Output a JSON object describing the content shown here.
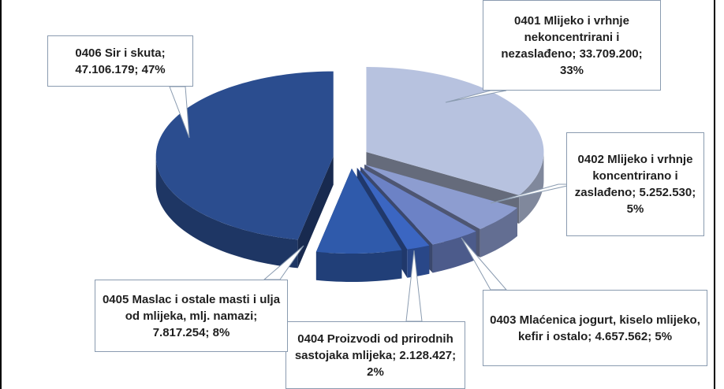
{
  "chart_data": {
    "type": "pie",
    "categories": [
      "0401 Mlijeko i vrhnje nekoncentrirani i nezaslađeno;",
      "0402 Mlijeko i vrhnje koncentrirano i zaslađeno;",
      "0403 Mlaćenica jogurt, kiselo mlijeko, kefir i ostalo;",
      "0404 Proizvodi od prirodnih sastojaka mlijeka;",
      "0405 Maslac i ostale masti i ulja od mlijeka, mlj. namazi;",
      "0406 Sir i skuta;"
    ],
    "values": [
      33709200,
      5252530,
      4657562,
      2128427,
      7817254,
      47106179
    ],
    "value_labels": [
      "33.709.200;",
      "5.252.530;",
      "4.657.562;",
      "2.128.427;",
      "7.817.254;",
      "47.106.179;"
    ],
    "percent_labels": [
      "33%",
      "5%",
      "5%",
      "2%",
      "8%",
      "47%"
    ],
    "colors": [
      "#b7c2df",
      "#8d9dd0",
      "#6c82c6",
      "#3b66c2",
      "#2f5aab",
      "#2b4d8f"
    ]
  }
}
